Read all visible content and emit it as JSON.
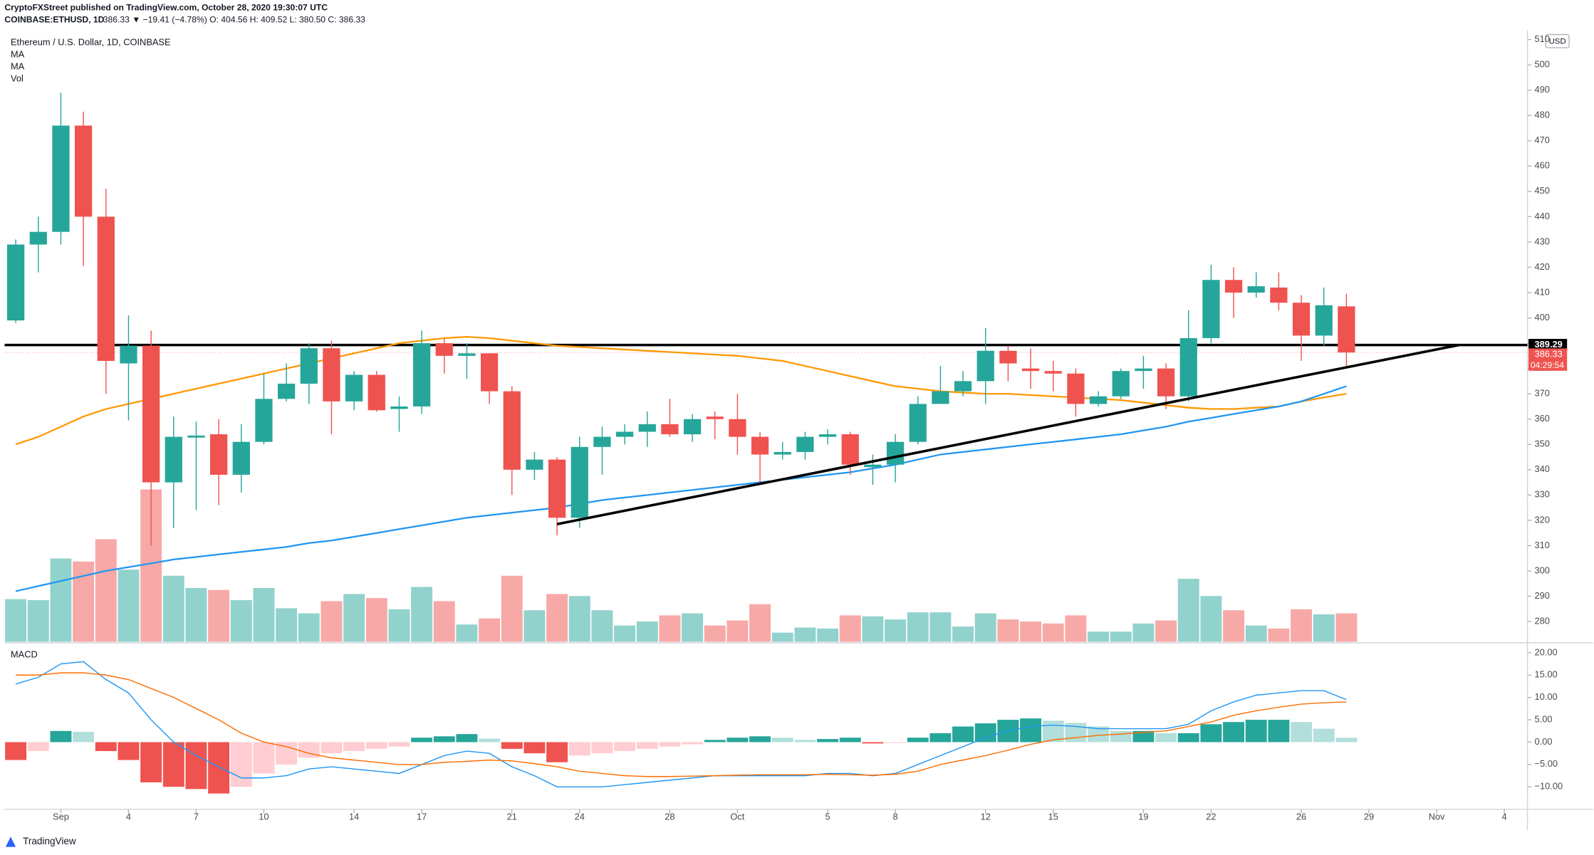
{
  "chart_data": {
    "type": "candlestick",
    "publisher": "CryptoFXStreet published on TradingView.com, October 28, 2020 19:30:07 UTC",
    "symbol": "COINBASE:ETHUSD, 1D",
    "quote": "386.33 ▼ −19.41 (−4.78%) O: 404.56 H: 409.52 L: 380.50 C: 386.33",
    "title": "Ethereum / U.S. Dollar, 1D, COINBASE",
    "currency": "USD",
    "brand": "TradingView",
    "up_color": "#26a69a",
    "down_color": "#ef5350",
    "open": [
      399,
      429,
      434,
      476,
      440,
      382,
      389,
      335,
      352.7,
      354,
      338,
      351,
      368,
      374,
      388,
      367,
      377.5,
      364,
      365,
      390,
      385,
      386,
      371,
      340,
      344,
      321,
      349,
      353,
      355,
      358,
      354,
      361,
      360,
      353,
      346,
      347,
      353,
      354,
      341,
      342,
      351,
      366,
      371,
      375,
      387,
      380,
      379,
      378,
      366,
      369,
      379,
      380,
      369,
      392,
      415,
      410,
      412,
      406,
      393,
      404.56
    ],
    "high": [
      431,
      440,
      489,
      481.5,
      451,
      401,
      395,
      361,
      359,
      360,
      358,
      378,
      382,
      390,
      391,
      379,
      379,
      369,
      395,
      392,
      390,
      386,
      373,
      347,
      345,
      353,
      357,
      358,
      363,
      368,
      362,
      363,
      370,
      355,
      351,
      355,
      356,
      355,
      346,
      354,
      369,
      381,
      379,
      396,
      389,
      388,
      383,
      380,
      371,
      380,
      385,
      382,
      403,
      421,
      420,
      418,
      418,
      409,
      412,
      409.52
    ],
    "low": [
      398,
      418,
      429,
      420.5,
      370,
      359.5,
      310,
      317,
      324,
      326,
      331,
      350,
      367,
      366,
      354,
      363.5,
      363,
      355,
      362,
      378,
      376,
      366,
      330,
      336,
      314,
      317,
      338,
      350,
      349,
      353,
      351,
      352,
      346,
      335,
      344,
      344,
      350,
      338,
      334,
      335,
      350,
      366,
      369,
      366,
      375,
      372,
      371,
      361,
      365,
      368,
      372,
      364,
      367,
      390,
      400,
      408,
      403,
      383,
      389,
      380.5
    ],
    "close": [
      429,
      434,
      476,
      440,
      383,
      389,
      335,
      353,
      353.5,
      338,
      351,
      368,
      374,
      388,
      367,
      377.5,
      363.5,
      365,
      390,
      385,
      386,
      371,
      340,
      344,
      321,
      349,
      353,
      355,
      358,
      354,
      360,
      360,
      353,
      346,
      347,
      353,
      354,
      342,
      342,
      351,
      366,
      371,
      375,
      387,
      382,
      379,
      378,
      366,
      369,
      379,
      380,
      369,
      392,
      415,
      410,
      412.5,
      406,
      393,
      405,
      386.33
    ],
    "ylim": [
      272,
      513.6
    ],
    "yticks": [
      280,
      290,
      300,
      310,
      320,
      330,
      340,
      350,
      360,
      370,
      380,
      390,
      400,
      410,
      420,
      430,
      440,
      450,
      460,
      470,
      480,
      490,
      500,
      510
    ],
    "xticks": [
      {
        "value": 2,
        "label": "Sep"
      },
      {
        "value": 5,
        "label": "4"
      },
      {
        "value": 8,
        "label": "7"
      },
      {
        "value": 11,
        "label": "10"
      },
      {
        "value": 15,
        "label": "14"
      },
      {
        "value": 18,
        "label": "17"
      },
      {
        "value": 22,
        "label": "21"
      },
      {
        "value": 25,
        "label": "24"
      },
      {
        "value": 29,
        "label": "28"
      },
      {
        "value": 32,
        "label": "Oct"
      },
      {
        "value": 36,
        "label": "5"
      },
      {
        "value": 39,
        "label": "8"
      },
      {
        "value": 43,
        "label": "12"
      },
      {
        "value": 46,
        "label": "15"
      },
      {
        "value": 50,
        "label": "19"
      },
      {
        "value": 53,
        "label": "22"
      },
      {
        "value": 57,
        "label": "26"
      },
      {
        "value": 60,
        "label": "29"
      },
      {
        "value": 63,
        "label": "Nov"
      },
      {
        "value": 66,
        "label": "4"
      }
    ],
    "series": [
      {
        "name": "MA",
        "color": "#ff9800",
        "values": [
          350,
          353,
          357,
          361,
          364,
          366,
          368,
          370,
          372,
          374,
          376,
          378,
          380,
          382,
          384,
          386,
          388,
          390,
          391,
          392,
          392.5,
          392,
          391,
          390,
          389,
          388.5,
          388,
          387.5,
          387,
          386.5,
          386,
          385.5,
          385,
          384,
          383,
          381,
          379,
          377,
          375,
          373,
          372,
          371,
          370.5,
          370,
          370,
          369.5,
          369,
          368.5,
          368,
          367.5,
          366.5,
          365.5,
          364.5,
          364,
          364,
          364.5,
          365,
          367,
          368.5,
          370
        ]
      },
      {
        "name": "MA",
        "color": "#2196f3",
        "values": [
          292,
          294,
          296,
          298,
          300,
          301.5,
          303,
          304.5,
          305.5,
          306.5,
          307.5,
          308.5,
          309.5,
          311,
          312,
          313.5,
          315,
          316.5,
          318,
          319.5,
          321,
          322,
          323,
          324,
          325,
          326.5,
          328,
          329,
          330,
          331,
          332,
          333,
          334,
          335,
          336,
          337,
          338,
          339,
          340.5,
          342,
          344,
          346,
          347,
          348,
          349,
          350,
          351,
          352,
          353,
          354,
          355.5,
          357,
          359,
          360.5,
          362,
          363.5,
          365,
          367,
          370,
          373
        ]
      }
    ],
    "volume": {
      "name": "Vol",
      "up_color": "#92d2cc",
      "down_color": "#f7a9a7",
      "values": [
        42,
        41,
        82,
        79,
        101,
        71,
        150,
        65,
        53,
        51,
        41,
        53,
        33,
        28,
        40,
        47,
        43,
        32,
        54,
        40,
        17,
        23,
        65,
        31,
        47,
        45,
        31,
        16,
        20,
        26,
        28,
        16,
        21,
        37,
        9,
        14,
        13,
        26,
        25,
        22,
        29,
        29,
        15,
        28,
        22,
        20,
        18,
        26,
        10,
        10,
        18,
        21,
        62,
        45,
        31,
        16,
        13,
        32,
        27,
        28
      ]
    },
    "price_line": {
      "value": 389.29,
      "label": "389.29",
      "color": "#000000"
    },
    "countdown": "04:29:54",
    "trendline": {
      "x": [
        24,
        64
      ],
      "y": [
        318.5,
        389.3
      ],
      "color": "#000000"
    },
    "macd": {
      "name": "MACD",
      "ylim": [
        -14.8,
        22
      ],
      "yticks": [
        {
          "value": 20,
          "label": "20.00"
        },
        {
          "value": 15,
          "label": "15.00"
        },
        {
          "value": 10,
          "label": "10.00"
        },
        {
          "value": 5,
          "label": "5.00"
        },
        {
          "value": 0,
          "label": "0.00"
        },
        {
          "value": -5,
          "label": "−5.00"
        },
        {
          "value": -10,
          "label": "−10.00"
        }
      ],
      "histogram": [
        -4,
        -2,
        2.5,
        2.3,
        -2,
        -4,
        -9,
        -10,
        -10.5,
        -11.5,
        -10,
        -7,
        -5,
        -3.5,
        -2.5,
        -2,
        -1.5,
        -1,
        1,
        1.3,
        1.8,
        0.8,
        -1.5,
        -2.5,
        -4.5,
        -3,
        -2.5,
        -2,
        -1.5,
        -1,
        -0.5,
        0.5,
        1,
        1.3,
        1,
        0.5,
        0.7,
        1,
        -0.3,
        -0.2,
        1,
        2,
        3.5,
        4.2,
        5,
        5.3,
        4.8,
        4.3,
        3.5,
        2.5,
        2.5,
        2,
        2,
        4,
        4.5,
        5,
        5,
        4.5,
        3,
        1
      ],
      "lines": [
        {
          "color": "#2196f3",
          "values": [
            13,
            14.5,
            17.5,
            18,
            14,
            11,
            5,
            0,
            -3,
            -5.5,
            -8,
            -8,
            -7.5,
            -6,
            -5.5,
            -6,
            -6.5,
            -7,
            -5,
            -3,
            -2,
            -2.5,
            -5.5,
            -7.5,
            -10,
            -10,
            -10,
            -9.5,
            -9,
            -8.5,
            -8,
            -7.5,
            -7.5,
            -7.5,
            -7.5,
            -7.5,
            -7,
            -7,
            -7.5,
            -7,
            -5,
            -3,
            -1,
            1,
            2.5,
            3.5,
            3.8,
            3.5,
            3,
            3,
            3,
            3,
            4,
            7,
            9,
            10.5,
            11,
            11.5,
            11.5,
            9.5
          ]
        },
        {
          "color": "#ff6d00",
          "values": [
            15,
            15,
            15.5,
            15.5,
            15,
            14,
            12,
            10,
            7.5,
            5,
            2,
            0,
            -1,
            -2.5,
            -3.5,
            -4,
            -4.5,
            -5,
            -5,
            -4.5,
            -4.3,
            -4,
            -4.2,
            -4.8,
            -5.5,
            -6.5,
            -7,
            -7.5,
            -7.7,
            -7.7,
            -7.6,
            -7.5,
            -7.4,
            -7.3,
            -7.3,
            -7.3,
            -7.2,
            -7.3,
            -7.4,
            -7.2,
            -6.5,
            -5,
            -4,
            -3,
            -1.8,
            -0.5,
            0.5,
            1,
            1.5,
            1.8,
            2.2,
            2.5,
            3.5,
            4.5,
            6,
            7,
            7.8,
            8.5,
            8.8,
            9
          ]
        }
      ]
    }
  }
}
